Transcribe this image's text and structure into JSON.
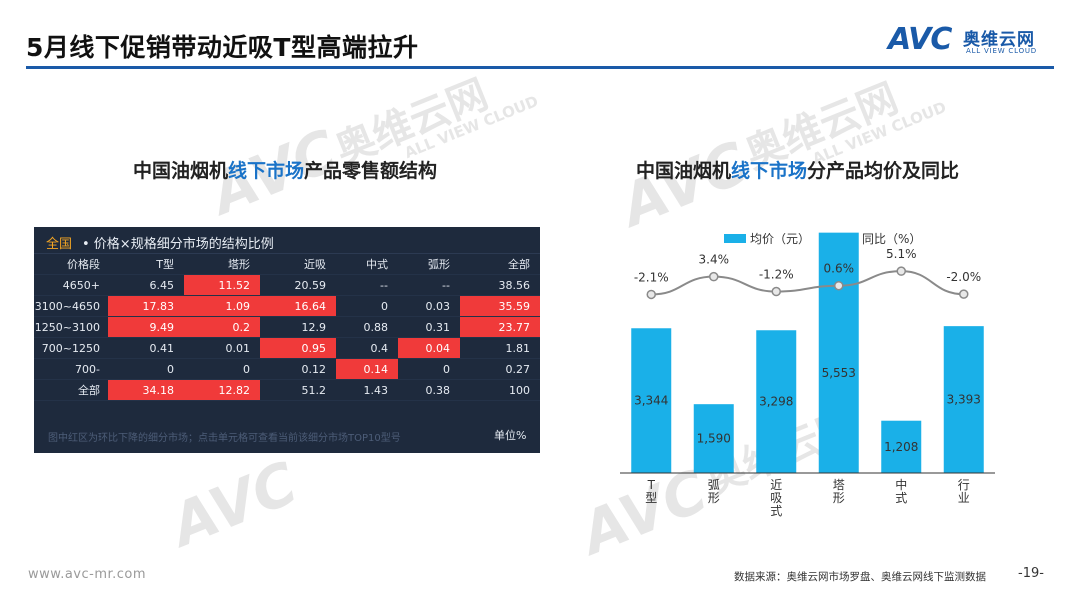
{
  "header": {
    "title": "5月线下促销带动近吸T型高端拉升",
    "logo_mark": "AVC",
    "logo_cn": "奥维云网",
    "logo_en": "ALL VIEW CLOUD"
  },
  "watermark": {
    "mark": "AVC",
    "cn": "奥维云网",
    "en": "ALL VIEW CLOUD"
  },
  "left_section": {
    "title_prefix": "中国油烟机",
    "title_highlight": "线下市场",
    "title_suffix": "产品零售额结构"
  },
  "right_section": {
    "title_prefix": "中国油烟机",
    "title_highlight": "线下市场",
    "title_suffix": "分产品均价及同比"
  },
  "table": {
    "header_all": "全国",
    "header_rest": " • 价格×规格细分市场的结构比例",
    "columns": [
      "价格段",
      "T型",
      "塔形",
      "近吸",
      "中式",
      "弧形",
      "全部"
    ],
    "rows": [
      {
        "label": "4650+",
        "cells": [
          "6.45",
          "11.52",
          "20.59",
          "--",
          "--",
          "38.56"
        ],
        "hot": [
          false,
          true,
          false,
          false,
          false,
          false
        ]
      },
      {
        "label": "3100~4650",
        "cells": [
          "17.83",
          "1.09",
          "16.64",
          "0",
          "0.03",
          "35.59"
        ],
        "hot": [
          true,
          true,
          true,
          false,
          false,
          true
        ]
      },
      {
        "label": "1250~3100",
        "cells": [
          "9.49",
          "0.2",
          "12.9",
          "0.88",
          "0.31",
          "23.77"
        ],
        "hot": [
          true,
          true,
          false,
          false,
          false,
          true
        ]
      },
      {
        "label": "700~1250",
        "cells": [
          "0.41",
          "0.01",
          "0.95",
          "0.4",
          "0.04",
          "1.81"
        ],
        "hot": [
          false,
          false,
          true,
          false,
          true,
          false
        ]
      },
      {
        "label": "700-",
        "cells": [
          "0",
          "0",
          "0.12",
          "0.14",
          "0",
          "0.27"
        ],
        "hot": [
          false,
          false,
          false,
          true,
          false,
          false
        ]
      },
      {
        "label": "全部",
        "cells": [
          "34.18",
          "12.82",
          "51.2",
          "1.43",
          "0.38",
          "100"
        ],
        "hot": [
          true,
          true,
          false,
          false,
          false,
          false
        ]
      }
    ],
    "note": "图中红区为环比下降的细分市场；点击单元格可查看当前该细分市场TOP10型号",
    "unit": "单位%"
  },
  "chart_data": {
    "type": "bar",
    "categories": [
      "T型",
      "弧形",
      "近吸式",
      "塔形",
      "中式",
      "行业"
    ],
    "category_lines": [
      [
        "T",
        "型"
      ],
      [
        "弧",
        "形"
      ],
      [
        "近",
        "吸",
        "式"
      ],
      [
        "塔",
        "形"
      ],
      [
        "中",
        "式"
      ],
      [
        "行",
        "业"
      ]
    ],
    "series": [
      {
        "name": "均价（元）",
        "type": "bar",
        "values": [
          3344,
          1590,
          3298,
          5553,
          1208,
          3393
        ],
        "labels": [
          "3,344",
          "1,590",
          "3,298",
          "5,553",
          "1,208",
          "3,393"
        ],
        "color": "#1ab0e8"
      },
      {
        "name": "同比（%）",
        "type": "line",
        "values": [
          -2.1,
          3.4,
          -1.2,
          0.6,
          5.1,
          -2.0
        ],
        "labels": [
          "-2.1%",
          "3.4%",
          "-1.2%",
          "0.6%",
          "5.1%",
          "-2.0%"
        ],
        "color": "#8a8a8a"
      }
    ],
    "ylim_bar": [
      0,
      6000
    ],
    "ylim_line": [
      -10,
      7
    ],
    "legend": "top"
  },
  "footer": {
    "url": "www.avc-mr.com",
    "source": "数据来源：奥维云网市场罗盘、奥维云网线下监测数据",
    "page": "-19-"
  }
}
